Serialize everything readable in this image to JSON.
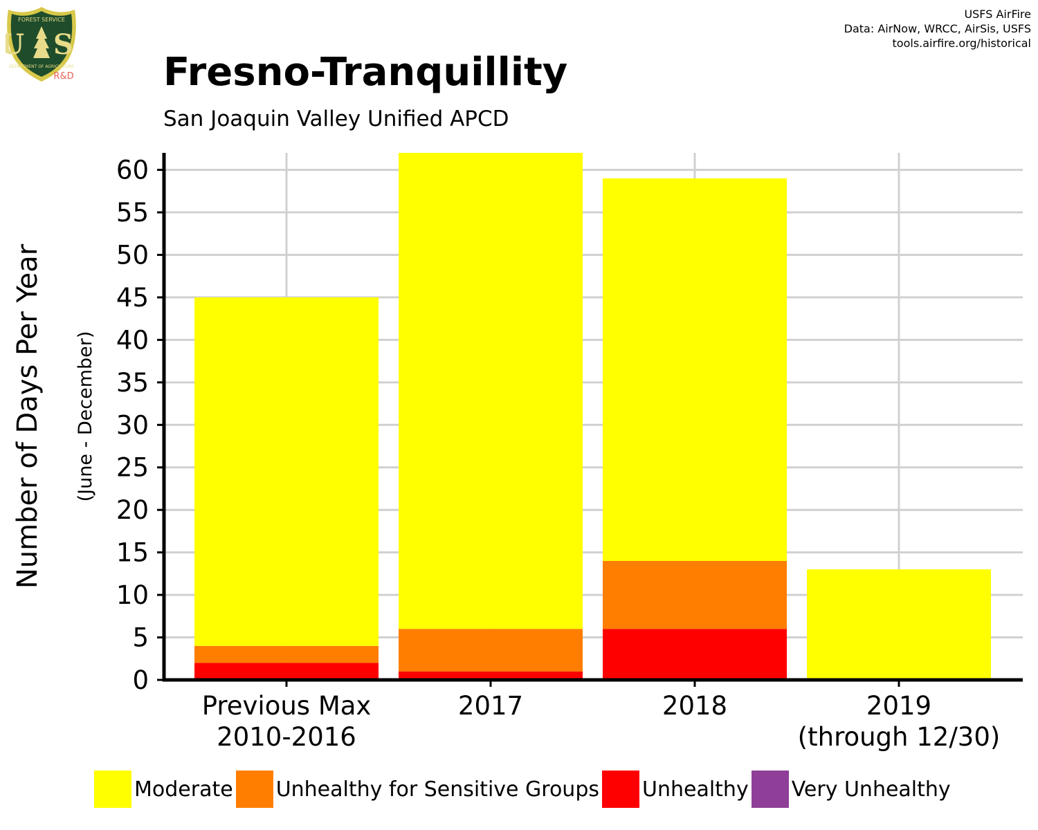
{
  "header": {
    "title": "Fresno-Tranquillity",
    "subtitle": "San Joaquin Valley Unified APCD",
    "credits": [
      "USFS AirFire",
      "Data: AirNow, WRCC, AirSis, USFS",
      "tools.airfire.org/historical"
    ]
  },
  "logo": {
    "top_text": "FOREST SERVICE",
    "letters": "U S",
    "bottom_text": "DEPARTMENT OF AGRICULTURE",
    "tag": "R&D",
    "icon": "usfs-shield-icon",
    "colors": {
      "shield": "#1f4d2b",
      "rim": "#d8c84a",
      "letters": "#e8dc8a",
      "tag": "#e8655a"
    }
  },
  "chart_data": {
    "type": "bar",
    "stacked": true,
    "title": "Fresno-Tranquillity",
    "subtitle": "San Joaquin Valley Unified APCD",
    "ylabel": "Number of Days Per Year",
    "ylabel_secondary": "(June - December)",
    "xlabel": "",
    "ylim": [
      0,
      62
    ],
    "yticks": [
      0,
      5,
      10,
      15,
      20,
      25,
      30,
      35,
      40,
      45,
      50,
      55,
      60
    ],
    "grid": true,
    "legend_position": "bottom",
    "categories": [
      [
        "Previous Max",
        "2010-2016"
      ],
      [
        "2017"
      ],
      [
        "2018"
      ],
      [
        "2019",
        "(through 12/30)"
      ]
    ],
    "series": [
      {
        "name": "Unhealthy",
        "color": "#ff0000",
        "values": [
          2,
          1,
          6,
          0
        ]
      },
      {
        "name": "Unhealthy for Sensitive Groups",
        "color": "#ff7e00",
        "values": [
          2,
          5,
          8,
          0
        ]
      },
      {
        "name": "Moderate",
        "color": "#ffff00",
        "values": [
          41,
          56,
          45,
          13
        ]
      },
      {
        "name": "Very Unhealthy",
        "color": "#8f3f97",
        "values": [
          0,
          0,
          0,
          0
        ]
      }
    ],
    "legend": [
      {
        "name": "Moderate",
        "color": "#ffff00"
      },
      {
        "name": "Unhealthy for Sensitive Groups",
        "color": "#ff7e00"
      },
      {
        "name": "Unhealthy",
        "color": "#ff0000"
      },
      {
        "name": "Very Unhealthy",
        "color": "#8f3f97"
      }
    ]
  }
}
